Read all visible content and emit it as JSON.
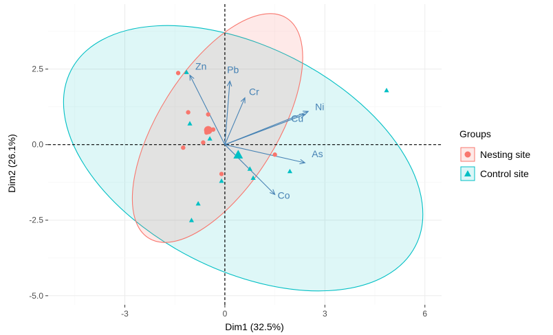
{
  "chart_data": {
    "type": "scatter",
    "subtype": "pca-biplot",
    "xlabel": "Dim1 (32.5%)",
    "ylabel": "Dim2 (26.1%)",
    "xlim": [
      -5.3,
      6.5
    ],
    "ylim": [
      -5.3,
      4.65
    ],
    "xticks": [
      -3,
      0,
      3,
      6
    ],
    "yticks": [
      -5.0,
      -2.5,
      0.0,
      2.5
    ],
    "xtick_labels": [
      "-3",
      "0",
      "3",
      "6"
    ],
    "ytick_labels": [
      "-5.0",
      "-2.5",
      "0.0",
      "2.5"
    ],
    "grid": true,
    "background": "#ffffff",
    "grid_color": "#ebebeb",
    "legend": {
      "title": "Groups",
      "position": "right",
      "entries": [
        "Nesting site",
        "Control site"
      ]
    },
    "series": [
      {
        "name": "Nesting site",
        "color": "#f8766d",
        "marker": "circle",
        "points": [
          {
            "x": -1.4,
            "y": 2.37
          },
          {
            "x": -1.1,
            "y": 1.07
          },
          {
            "x": -0.5,
            "y": 1.0
          },
          {
            "x": -1.25,
            "y": -0.1
          },
          {
            "x": -0.65,
            "y": 0.07
          },
          {
            "x": -0.55,
            "y": 0.4
          },
          {
            "x": -0.5,
            "y": 0.52
          },
          {
            "x": -0.45,
            "y": 0.47
          },
          {
            "x": -0.35,
            "y": 0.5
          },
          {
            "x": 1.5,
            "y": -0.33
          },
          {
            "x": -0.1,
            "y": -0.97
          }
        ],
        "centroid": {
          "x": -0.5,
          "y": 0.48
        },
        "ellipse": {
          "cx": -0.22,
          "cy": 0.55,
          "rx": 3.9,
          "ry": 1.95,
          "angle_deg": -58
        }
      },
      {
        "name": "Control site",
        "color": "#00bfc4",
        "marker": "triangle",
        "points": [
          {
            "x": -1.15,
            "y": 2.4
          },
          {
            "x": -1.05,
            "y": 0.7
          },
          {
            "x": -0.45,
            "y": 0.2
          },
          {
            "x": -0.1,
            "y": -1.2
          },
          {
            "x": 0.75,
            "y": -0.8
          },
          {
            "x": 0.85,
            "y": -1.1
          },
          {
            "x": 1.95,
            "y": -0.88
          },
          {
            "x": -0.8,
            "y": -1.95
          },
          {
            "x": -1.0,
            "y": -2.5
          },
          {
            "x": 4.85,
            "y": 1.8
          }
        ],
        "centroid": {
          "x": 0.4,
          "y": -0.33
        },
        "ellipse": {
          "cx": 0.55,
          "cy": -0.45,
          "rx": 5.8,
          "ry": 3.7,
          "angle_deg": 27
        }
      }
    ],
    "variables": [
      {
        "name": "Zn",
        "x": -1.05,
        "y": 2.3
      },
      {
        "name": "Pb",
        "x": 0.15,
        "y": 2.1
      },
      {
        "name": "Cr",
        "x": 0.6,
        "y": 1.55
      },
      {
        "name": "Ni",
        "x": 2.5,
        "y": 1.1
      },
      {
        "name": "Cu",
        "x": 2.4,
        "y": 1.0
      },
      {
        "name": "As",
        "x": 2.4,
        "y": -0.6
      },
      {
        "name": "Co",
        "x": 1.5,
        "y": -1.65
      }
    ]
  }
}
